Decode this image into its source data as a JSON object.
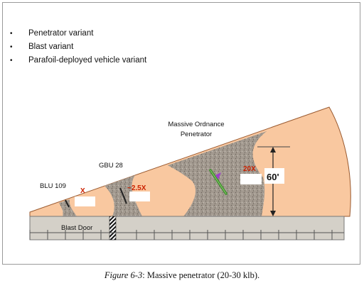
{
  "bullets": [
    "Penetrator variant",
    "Blast variant",
    "Parafoil-deployed vehicle variant"
  ],
  "labels": {
    "blu109": "BLU 109",
    "gbu28": "GBU 28",
    "mop_line1": "Massive Ordnance",
    "mop_line2": "Penetrator",
    "blast_door": "Blast Door",
    "x_marker": "X",
    "gbu_factor": "~2.5X",
    "mop_factor": "20X",
    "depth": "60'"
  },
  "caption": {
    "figure_ref": "Figure 6-3",
    "text": ": Massive penetrator (20-30 klb)."
  },
  "colors": {
    "earth": "#f9c8a0",
    "rubble": "#a39a90",
    "concrete": "#d4d0c8",
    "marker": "#cc2200"
  }
}
